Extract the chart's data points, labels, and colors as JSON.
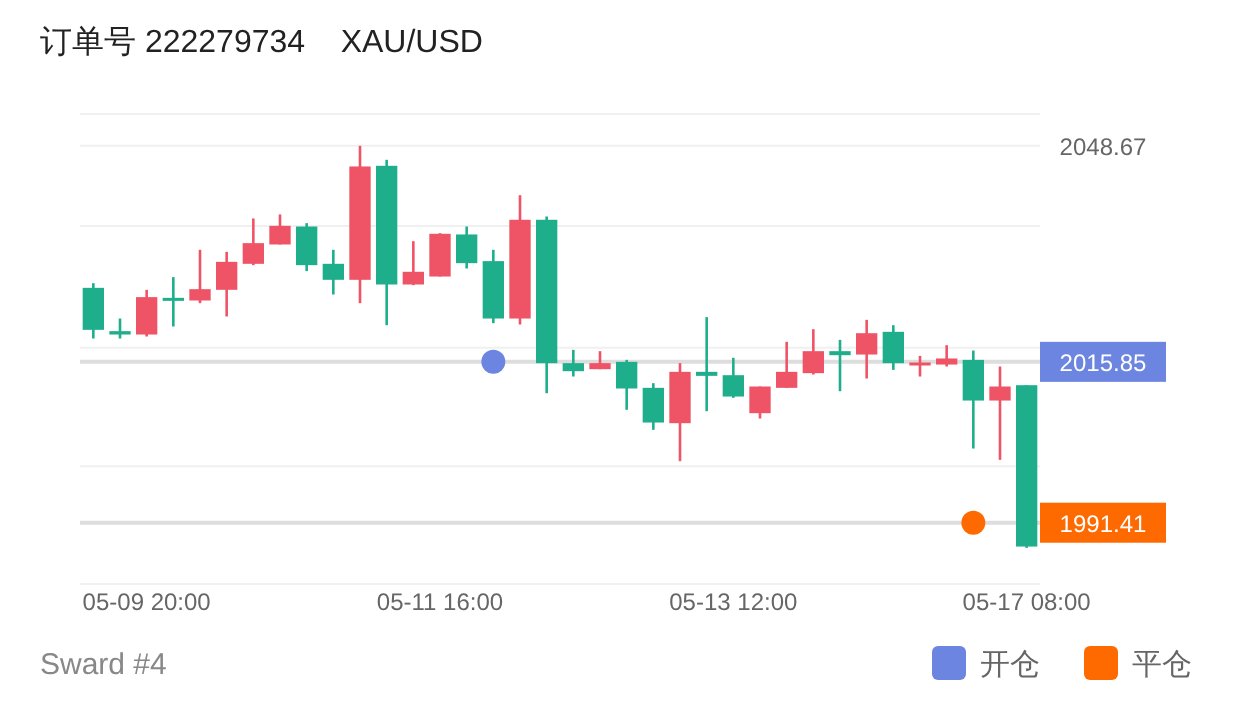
{
  "chart_data": {
    "type": "candlestick",
    "title": "订单号 222279734    XAU/USD",
    "categories": [
      null,
      null,
      "05-09 20:00",
      null,
      null,
      null,
      null,
      null,
      null,
      null,
      null,
      null,
      null,
      "05-11 16:00",
      null,
      null,
      null,
      null,
      null,
      null,
      null,
      null,
      null,
      null,
      "05-13 12:00",
      null,
      null,
      null,
      null,
      null,
      null,
      null,
      null,
      null,
      null,
      "05-17 08:00"
    ],
    "ohlc": [
      [
        2027.09,
        2027.8,
        2019.39,
        2020.71
      ],
      [
        2020.51,
        2022.43,
        2019.39,
        2020.0
      ],
      [
        2020.0,
        2026.79,
        2019.7,
        2025.68
      ],
      [
        2025.57,
        2028.72,
        2021.22,
        2025.17
      ],
      [
        2025.17,
        2032.87,
        2024.76,
        2026.89
      ],
      [
        2026.79,
        2032.56,
        2022.74,
        2031.04
      ],
      [
        2030.74,
        2037.63,
        2030.54,
        2033.88
      ],
      [
        2033.68,
        2038.24,
        2033.68,
        2036.51
      ],
      [
        2036.41,
        2036.92,
        2029.63,
        2030.54
      ],
      [
        2030.74,
        2032.87,
        2026.08,
        2028.31
      ],
      [
        2028.31,
        2048.67,
        2024.76,
        2045.53
      ],
      [
        2045.63,
        2046.54,
        2021.42,
        2027.6
      ],
      [
        2027.6,
        2034.18,
        2027.5,
        2029.53
      ],
      [
        2028.81,
        2035.4,
        2028.81,
        2035.3
      ],
      [
        2035.2,
        2036.41,
        2030.03,
        2030.84
      ],
      [
        2031.15,
        2032.87,
        2021.72,
        2022.43
      ],
      [
        2022.43,
        2041.17,
        2021.52,
        2037.43
      ],
      [
        2037.43,
        2037.93,
        2011.09,
        2015.65
      ],
      [
        2015.65,
        2017.67,
        2013.62,
        2014.43
      ],
      [
        2014.73,
        2017.47,
        2014.73,
        2015.65
      ],
      [
        2015.85,
        2016.15,
        2008.56,
        2011.8
      ],
      [
        2011.9,
        2012.61,
        2005.52,
        2006.63
      ],
      [
        2006.53,
        2015.65,
        2000.76,
        2014.33
      ],
      [
        2014.33,
        2022.64,
        2008.35,
        2013.72
      ],
      [
        2013.82,
        2016.46,
        2010.38,
        2010.58
      ],
      [
        2008.05,
        2012.1,
        2007.24,
        2012.1
      ],
      [
        2011.9,
        2018.89,
        2011.9,
        2014.33
      ],
      [
        2014.13,
        2020.81,
        2013.92,
        2017.47
      ],
      [
        2017.47,
        2019.19,
        2011.39,
        2016.86
      ],
      [
        2016.96,
        2022.23,
        2013.32,
        2020.2
      ],
      [
        2020.41,
        2021.42,
        2014.63,
        2015.65
      ],
      [
        2015.34,
        2016.76,
        2013.62,
        2015.75
      ],
      [
        2015.44,
        2018.38,
        2015.14,
        2016.36
      ],
      [
        2016.15,
        2017.57,
        2002.68,
        2009.97
      ],
      [
        2009.97,
        2015.14,
        2000.96,
        2012.1
      ],
      [
        2012.3,
        2012.3,
        1987.59,
        1987.79
      ]
    ],
    "colors": [
      "#1fae8c",
      "#1fae8c",
      "#ef5366",
      "#1fae8c",
      "#ef5366",
      "#ef5366",
      "#ef5366",
      "#ef5366",
      "#1fae8c",
      "#1fae8c",
      "#ef5366",
      "#1fae8c",
      "#ef5366",
      "#ef5366",
      "#1fae8c",
      "#1fae8c",
      "#ef5366",
      "#1fae8c",
      "#1fae8c",
      "#ef5366",
      "#1fae8c",
      "#1fae8c",
      "#ef5366",
      "#1fae8c",
      "#1fae8c",
      "#ef5366",
      "#ef5366",
      "#ef5366",
      "#1fae8c",
      "#ef5366",
      "#1fae8c",
      "#ef5366",
      "#ef5366",
      "#1fae8c",
      "#ef5366",
      "#1fae8c"
    ],
    "series": [
      {
        "name": "开仓",
        "type": "scatter",
        "color": "#6b85e0",
        "values": [
          null,
          null,
          null,
          null,
          null,
          null,
          null,
          null,
          null,
          null,
          null,
          null,
          null,
          null,
          null,
          2015.85,
          null,
          null,
          null,
          null,
          null,
          null,
          null,
          null,
          null,
          null,
          null,
          null,
          null,
          null,
          null,
          null,
          null,
          null,
          null,
          null
        ]
      },
      {
        "name": "平仓",
        "type": "scatter",
        "color": "#ff6a00",
        "values": [
          null,
          null,
          null,
          null,
          null,
          null,
          null,
          null,
          null,
          null,
          null,
          null,
          null,
          null,
          null,
          null,
          null,
          null,
          null,
          null,
          null,
          null,
          null,
          null,
          null,
          null,
          null,
          null,
          null,
          null,
          null,
          null,
          null,
          1991.41,
          null,
          null
        ]
      }
    ],
    "ylim": [
      1982.1,
      2053.5
    ],
    "yticks": [
      2048.67,
      {
        "value": 2036.5,
        "label": null
      },
      {
        "value": 2018.0,
        "label": null
      },
      2015.85,
      {
        "value": 2000.0,
        "label": null
      },
      1991.41
    ],
    "grid": "y",
    "legend": "bottom right",
    "annotations": [
      "Sward #4"
    ]
  }
}
